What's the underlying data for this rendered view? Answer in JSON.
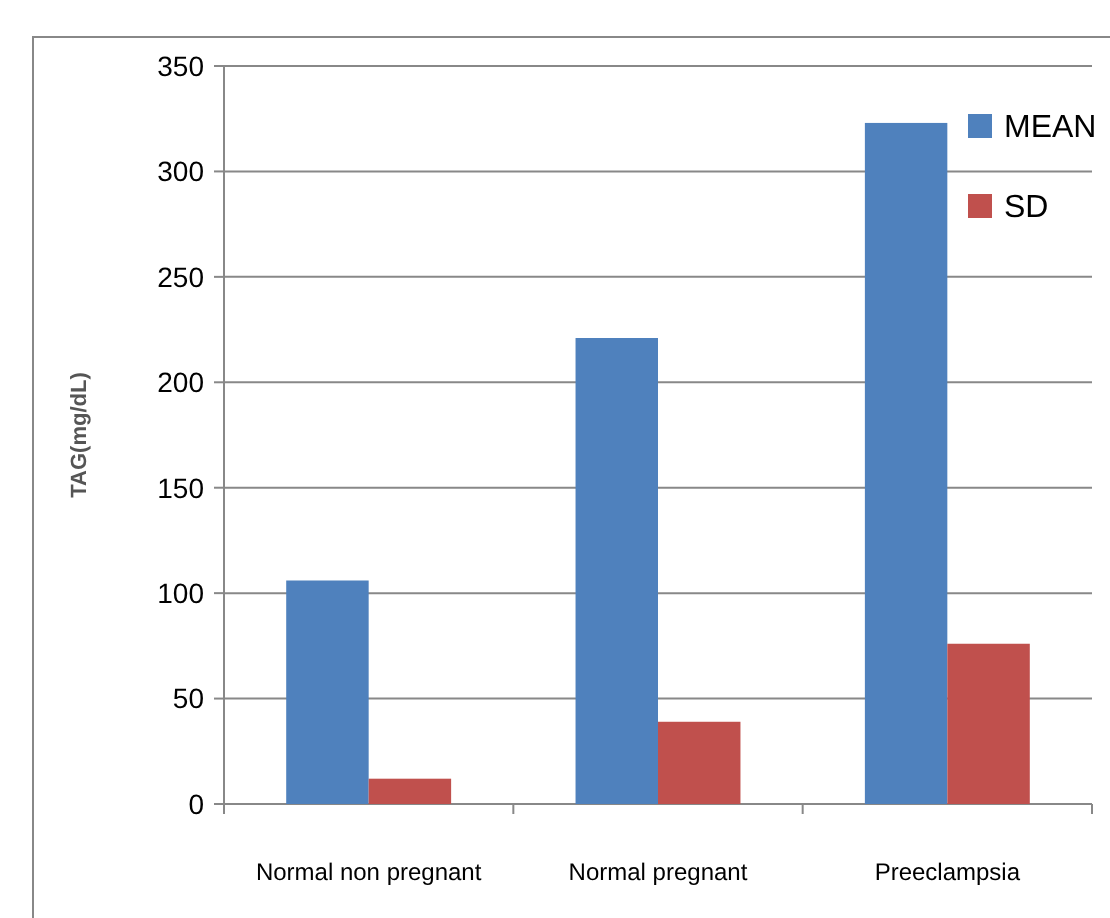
{
  "chart_data": {
    "type": "bar",
    "ylabel": "TAG(mg/dL)",
    "categories": [
      "Normal non pregnant",
      "Normal pregnant",
      "Preeclampsia"
    ],
    "series": [
      {
        "name": "MEAN",
        "color": "#4f81bd",
        "values": [
          106,
          221,
          323
        ]
      },
      {
        "name": "SD",
        "color": "#c0504d",
        "values": [
          12,
          39,
          76
        ]
      }
    ],
    "ylim": [
      0,
      350
    ],
    "yticks": [
      0,
      50,
      100,
      150,
      200,
      250,
      300,
      350
    ],
    "grid": "y",
    "legend": "top right"
  }
}
